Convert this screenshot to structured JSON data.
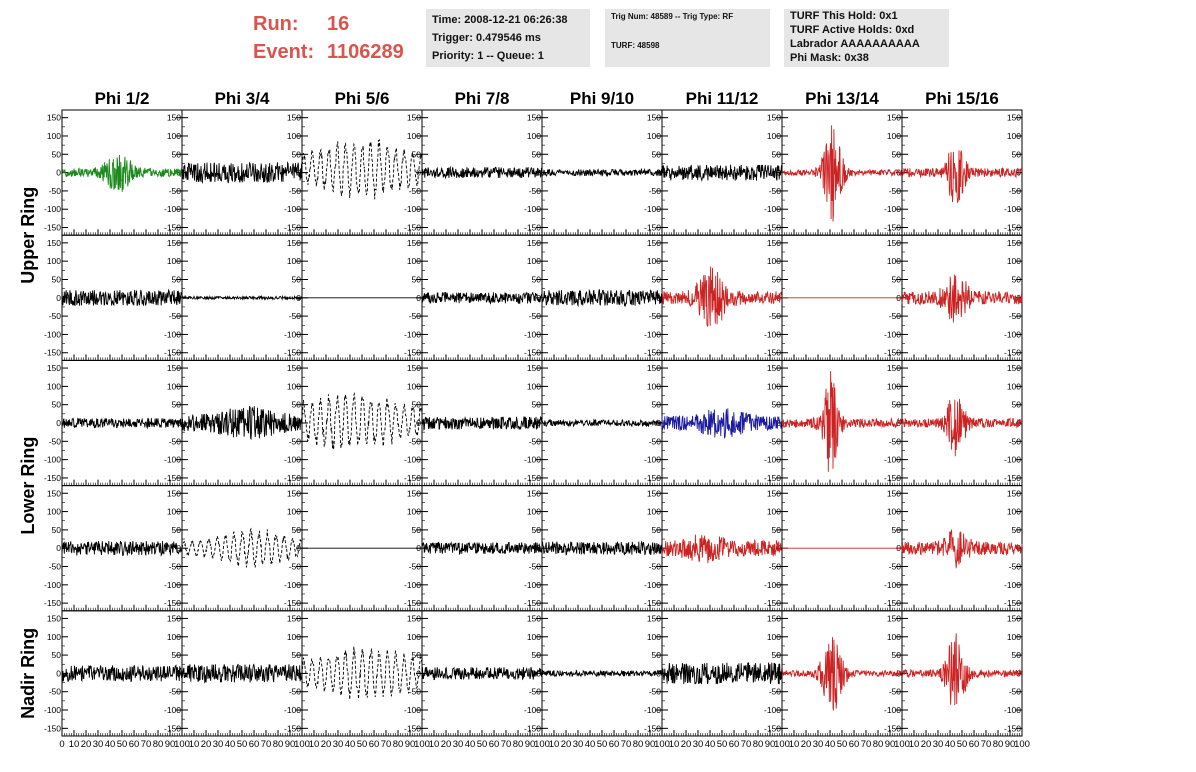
{
  "header": {
    "run_label": "Run:",
    "run_value": "16",
    "event_label": "Event:",
    "event_value": "1106289",
    "time_box": {
      "line1": "Time: 2008-12-21 06:26:38",
      "line2": "Trigger: 0.479546 ms",
      "line3": "Priority: 1 -- Queue: 1"
    },
    "trig_box": {
      "line1": "Trig Num: 48589 -- Trig Type: RF",
      "line2": "TURF: 48598"
    },
    "turf_box": {
      "line1": "TURF This Hold: 0x1",
      "line2": "TURF Active Holds: 0xd",
      "line3": "Labrador AAAAAAAAAA",
      "line4": "Phi Mask: 0x38"
    },
    "colors": {
      "run_text": "#d9534f",
      "box_bg": "#e6e6e6"
    }
  },
  "chart_data": {
    "type": "line",
    "columns": [
      "Phi 1/2",
      "Phi 3/4",
      "Phi 5/6",
      "Phi 7/8",
      "Phi 9/10",
      "Phi 11/12",
      "Phi 13/14",
      "Phi 15/16"
    ],
    "row_labels": [
      {
        "text": "Upper Ring",
        "rows": [
          0,
          1
        ]
      },
      {
        "text": "Lower Ring",
        "rows": [
          2,
          3
        ]
      },
      {
        "text": "Nadir Ring",
        "rows": [
          4,
          4
        ]
      }
    ],
    "ylim": [
      -160,
      160
    ],
    "yticks": [
      150,
      100,
      50,
      0,
      -50,
      -100,
      -150
    ],
    "xlim": [
      0,
      100
    ],
    "xticks": [
      0,
      10,
      20,
      30,
      40,
      50,
      60,
      70,
      80,
      90,
      100
    ],
    "colors": {
      "black": "#000000",
      "red": "#cc2222",
      "green": "#1a8a1a",
      "blue": "#1a1aa0"
    },
    "panels": [
      [
        {
          "color": "green",
          "style": "solid",
          "amp": 12,
          "pulse": {
            "center": 47,
            "width": 12,
            "amp": 45
          },
          "offset": 0
        },
        {
          "color": "black",
          "style": "solid",
          "amp": 28,
          "offset": 0
        },
        {
          "color": "black",
          "style": "dashed",
          "amp": 40,
          "pulse": {
            "center": 50,
            "width": 35,
            "amp": 50
          },
          "offset": 10
        },
        {
          "color": "black",
          "style": "solid",
          "amp": 15,
          "offset": 0
        },
        {
          "color": "black",
          "style": "solid",
          "amp": 9,
          "offset": 0
        },
        {
          "color": "black",
          "style": "solid",
          "amp": 22,
          "offset": 0
        },
        {
          "color": "red",
          "style": "solid",
          "amp": 8,
          "pulse": {
            "center": 42,
            "width": 8,
            "amp": 130
          },
          "offset": 0
        },
        {
          "color": "red",
          "style": "solid",
          "amp": 12,
          "pulse": {
            "center": 45,
            "width": 7,
            "amp": 95
          },
          "offset": 0
        }
      ],
      [
        {
          "color": "black",
          "style": "solid",
          "amp": 22,
          "offset": 0
        },
        {
          "color": "black",
          "style": "solid",
          "amp": 4,
          "offset": 0
        },
        {
          "color": "black",
          "style": "flat",
          "amp": 0,
          "offset": 0
        },
        {
          "color": "black",
          "style": "solid",
          "amp": 16,
          "offset": 0
        },
        {
          "color": "black",
          "style": "solid",
          "amp": 22,
          "offset": 0
        },
        {
          "color": "red",
          "style": "solid",
          "amp": 18,
          "pulse": {
            "center": 42,
            "width": 12,
            "amp": 70
          },
          "offset": 0
        },
        {
          "color": "red",
          "style": "flat",
          "amp": 0,
          "offset": 0
        },
        {
          "color": "red",
          "style": "solid",
          "amp": 18,
          "pulse": {
            "center": 45,
            "width": 10,
            "amp": 55
          },
          "offset": 0
        }
      ],
      [
        {
          "color": "black",
          "style": "solid",
          "amp": 13,
          "offset": 0
        },
        {
          "color": "black",
          "style": "solid",
          "amp": 22,
          "pulse": {
            "center": 55,
            "width": 25,
            "amp": 25
          },
          "offset": 0
        },
        {
          "color": "black",
          "style": "dashed",
          "amp": 45,
          "pulse": {
            "center": 40,
            "width": 40,
            "amp": 40
          },
          "offset": 5
        },
        {
          "color": "black",
          "style": "solid",
          "amp": 18,
          "offset": 0
        },
        {
          "color": "black",
          "style": "solid",
          "amp": 9,
          "offset": 0
        },
        {
          "color": "blue",
          "style": "solid",
          "amp": 20,
          "pulse": {
            "center": 50,
            "width": 20,
            "amp": 22
          },
          "offset": 0
        },
        {
          "color": "red",
          "style": "solid",
          "amp": 12,
          "pulse": {
            "center": 40,
            "width": 7,
            "amp": 140
          },
          "offset": 0
        },
        {
          "color": "red",
          "style": "solid",
          "amp": 12,
          "pulse": {
            "center": 45,
            "width": 8,
            "amp": 80
          },
          "offset": 0
        }
      ],
      [
        {
          "color": "black",
          "style": "solid",
          "amp": 20,
          "offset": 0
        },
        {
          "color": "black",
          "style": "dashed",
          "amp": 22,
          "pulse": {
            "center": 60,
            "width": 30,
            "amp": 35
          },
          "offset": 0
        },
        {
          "color": "black",
          "style": "flat",
          "amp": 0,
          "offset": 0
        },
        {
          "color": "black",
          "style": "solid",
          "amp": 16,
          "offset": 0
        },
        {
          "color": "black",
          "style": "solid",
          "amp": 18,
          "offset": 0
        },
        {
          "color": "red",
          "style": "solid",
          "amp": 22,
          "pulse": {
            "center": 35,
            "width": 15,
            "amp": 25
          },
          "offset": 0
        },
        {
          "color": "red",
          "style": "flat",
          "amp": 0,
          "offset": 0
        },
        {
          "color": "red",
          "style": "solid",
          "amp": 18,
          "pulse": {
            "center": 45,
            "width": 10,
            "amp": 40
          },
          "offset": 0
        }
      ],
      [
        {
          "color": "black",
          "style": "solid",
          "amp": 22,
          "offset": 0
        },
        {
          "color": "black",
          "style": "solid",
          "amp": 25,
          "offset": 0
        },
        {
          "color": "black",
          "style": "dashed",
          "amp": 40,
          "pulse": {
            "center": 55,
            "width": 35,
            "amp": 40
          },
          "offset": 0
        },
        {
          "color": "black",
          "style": "solid",
          "amp": 17,
          "offset": 0
        },
        {
          "color": "black",
          "style": "solid",
          "amp": 8,
          "offset": 0
        },
        {
          "color": "black",
          "style": "solid",
          "amp": 30,
          "offset": 0
        },
        {
          "color": "red",
          "style": "solid",
          "amp": 8,
          "pulse": {
            "center": 42,
            "width": 9,
            "amp": 100
          },
          "offset": 0
        },
        {
          "color": "red",
          "style": "solid",
          "amp": 10,
          "pulse": {
            "center": 45,
            "width": 8,
            "amp": 110
          },
          "offset": 0
        }
      ]
    ]
  }
}
